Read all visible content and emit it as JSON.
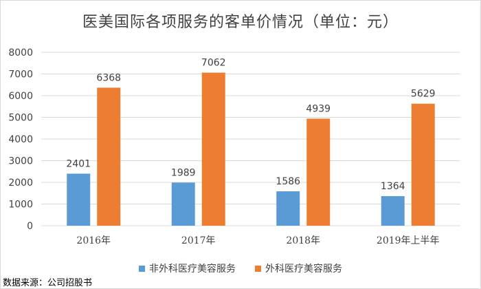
{
  "chart_data": {
    "type": "bar",
    "title": "医美国际各项服务的客单价情况（单位：元）",
    "categories": [
      "2016年",
      "2017年",
      "2018年",
      "2019年上半年"
    ],
    "series": [
      {
        "name": "非外科医疗美容服务",
        "color": "#5B9BD5",
        "values": [
          2401,
          1989,
          1586,
          1364
        ]
      },
      {
        "name": "外科医疗美容服务",
        "color": "#ED7D31",
        "values": [
          6368,
          7062,
          4939,
          5629
        ]
      }
    ],
    "ylim": [
      0,
      8000
    ],
    "yticks": [
      0,
      1000,
      2000,
      3000,
      4000,
      5000,
      6000,
      7000,
      8000
    ],
    "grid": true,
    "legend": "bottom",
    "xlabel": "",
    "ylabel": ""
  },
  "source": "数据来源：公司招股书",
  "colors": {
    "gridline": "#d9d9d9",
    "text": "#404040"
  }
}
